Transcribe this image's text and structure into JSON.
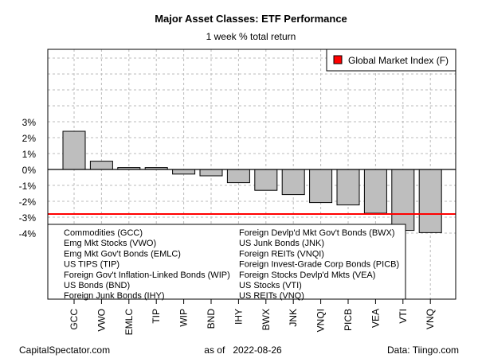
{
  "chart_data": {
    "type": "bar",
    "title": "Major Asset Classes: ETF Performance",
    "subtitle": "1 week % total return",
    "categories": [
      "GCC",
      "VWO",
      "EMLC",
      "TIP",
      "WIP",
      "BND",
      "IHY",
      "BWX",
      "JNK",
      "VNQI",
      "PICB",
      "VEA",
      "VTI",
      "VNQ"
    ],
    "values": [
      2.4,
      0.52,
      0.12,
      0.12,
      -0.29,
      -0.4,
      -0.83,
      -1.31,
      -1.58,
      -2.08,
      -2.23,
      -2.75,
      -3.83,
      -3.97
    ],
    "ylim": [
      -8.15,
      7.55
    ],
    "yticks": [
      3,
      2,
      1,
      0,
      -1,
      -2,
      -3,
      -4
    ],
    "ytick_labels": [
      "3%",
      "2%",
      "1%",
      "0%",
      "-1%",
      "-2%",
      "-3%",
      "-4%"
    ],
    "reference_line": {
      "name": "Global Market Index (F)",
      "value": -2.8,
      "color": "#ff0000"
    },
    "bar_color": "#bebebe",
    "grid": true,
    "legend_placement": "top-right",
    "category_legend": [
      [
        "Commodities (GCC)",
        "Emg Mkt Stocks (VWO)",
        "Emg Mkt Gov't Bonds (EMLC)",
        "US TIPS (TIP)",
        "Foreign Gov't Inflation-Linked Bonds (WIP)",
        "US Bonds (BND)",
        "Foreign Junk Bonds (IHY)"
      ],
      [
        "Foreign Devlp'd Mkt Gov't Bonds (BWX)",
        "US Junk Bonds (JNK)",
        "Foreign REITs (VNQI)",
        "Foreign Invest-Grade Corp Bonds (PICB)",
        "Foreign Stocks Devlp'd Mkts (VEA)",
        "US Stocks (VTI)",
        "US REITs (VNQ)"
      ]
    ]
  },
  "footer": {
    "left": "CapitalSpectator.com",
    "center": "as of   2022-08-26",
    "right": "Data: Tiingo.com"
  }
}
